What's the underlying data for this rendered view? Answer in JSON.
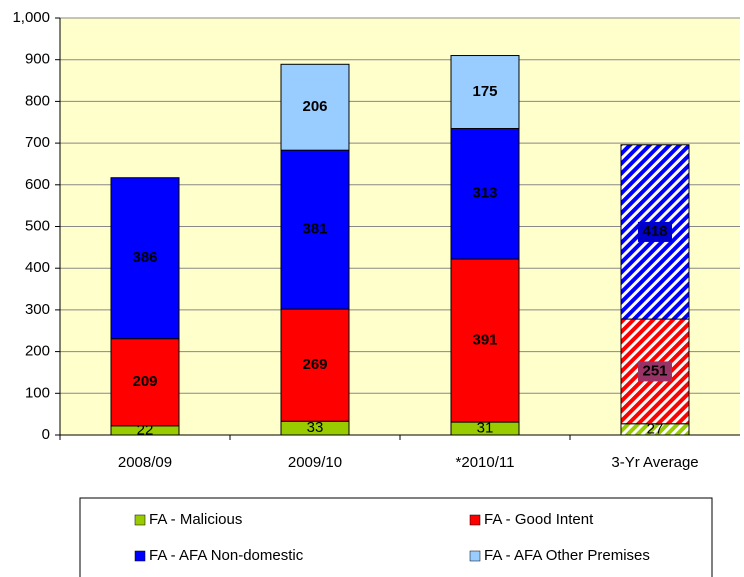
{
  "chart_data": {
    "type": "stacked_bar",
    "categories": [
      "2008/09",
      "2009/10",
      "*2010/11",
      "3-Yr Average"
    ],
    "series": [
      {
        "name": "FA - Malicious",
        "color": "#99cc00",
        "label_color": "#333333",
        "values": [
          22,
          33,
          31,
          27
        ]
      },
      {
        "name": "FA - Good Intent",
        "color": "#ff0000",
        "label_color": "#ffffff",
        "values": [
          209,
          269,
          391,
          251
        ]
      },
      {
        "name": "FA - AFA Non-domestic",
        "color": "#0000ff",
        "label_color": "#ffffff",
        "values": [
          386,
          381,
          313,
          418
        ]
      },
      {
        "name": "FA - AFA Other Premises",
        "color": "#99ccff",
        "label_color": "#000000",
        "values": [
          null,
          206,
          175,
          null
        ]
      }
    ],
    "hatched_category_index": 3,
    "ylim": [
      0,
      1000
    ],
    "yticks": [
      0,
      100,
      200,
      300,
      400,
      500,
      600,
      700,
      800,
      900,
      {
        "value": 1000,
        "label": "1,000"
      }
    ],
    "grid": true,
    "legend": "bottom"
  }
}
